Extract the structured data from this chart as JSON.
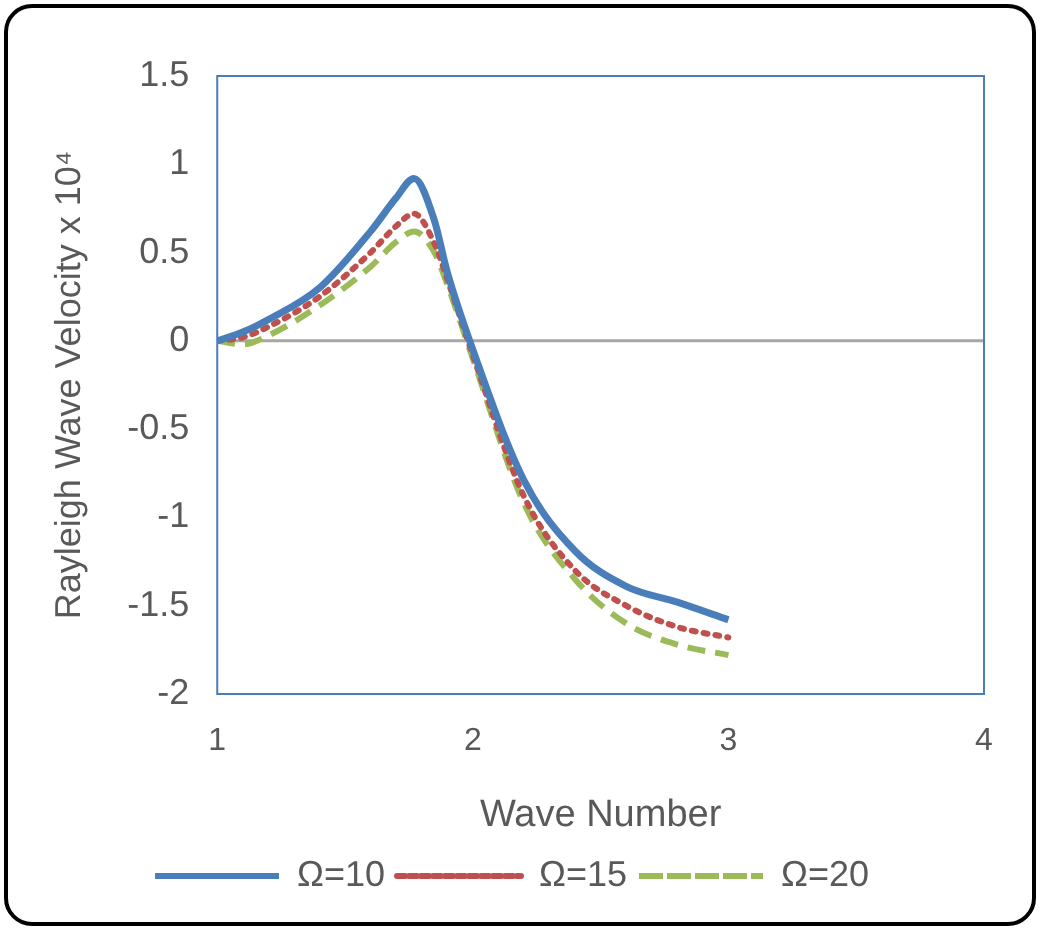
{
  "chart_data": {
    "type": "line",
    "xlabel": "Wave Number",
    "ylabel": "Rayleigh Wave Velocity x 10⁴",
    "xlim": [
      1,
      4
    ],
    "xticks": [
      1,
      2,
      3,
      4
    ],
    "ylim": [
      -2,
      1.5
    ],
    "yticks": [
      {
        "value": -2,
        "label": "-2"
      },
      -1.5,
      {
        "value": -1,
        "label": "-1"
      },
      -0.5,
      0,
      0.5,
      {
        "value": 1,
        "label": "1"
      },
      1.5
    ],
    "grid": false,
    "ref_lines": [
      {
        "axis": "y",
        "value": 0,
        "color": "#a6a6a6"
      }
    ],
    "legend": "bottom",
    "marker": "none",
    "x": [
      1,
      1.1,
      1.2,
      1.4,
      1.6,
      1.7,
      1.77,
      1.85,
      1.9,
      2,
      2.2,
      2.4,
      2.6,
      2.8,
      3
    ],
    "series": [
      {
        "name": "Ω=10",
        "color": "#4a7ebb",
        "line_style": "solid",
        "values": [
          0,
          0.05,
          0.12,
          0.3,
          0.62,
          0.81,
          0.92,
          0.68,
          0.39,
          -0.05,
          -0.79,
          -1.19,
          -1.39,
          -1.48,
          -1.58
        ]
      },
      {
        "name": "Ω=15",
        "color": "#c0504d",
        "line_style": "dotted",
        "values": [
          0,
          0.02,
          0.08,
          0.25,
          0.5,
          0.65,
          0.72,
          0.55,
          0.35,
          -0.08,
          -0.88,
          -1.3,
          -1.5,
          -1.62,
          -1.68
        ]
      },
      {
        "name": "Ω=20",
        "color": "#9bbb59",
        "line_style": "dashed",
        "values": [
          0,
          -0.02,
          0.03,
          0.2,
          0.42,
          0.56,
          0.62,
          0.5,
          0.32,
          -0.1,
          -0.92,
          -1.35,
          -1.6,
          -1.72,
          -1.78
        ]
      }
    ]
  }
}
